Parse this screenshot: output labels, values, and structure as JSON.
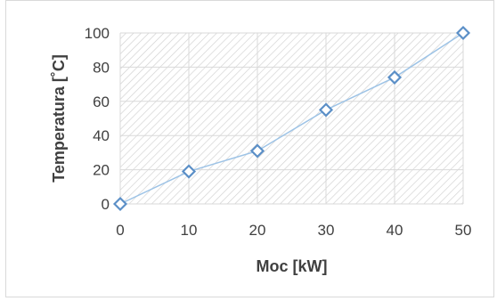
{
  "chart_data": {
    "type": "line",
    "title": "",
    "xlabel": "Moc [kW]",
    "ylabel": "Temperatura [˚C]",
    "x": [
      0,
      10,
      20,
      30,
      40,
      50
    ],
    "series": [
      {
        "values": [
          0,
          19,
          31,
          55,
          74,
          100
        ]
      }
    ],
    "xlim": [
      0,
      50
    ],
    "ylim": [
      0,
      100
    ],
    "xticks": [
      "0",
      "10",
      "20",
      "30",
      "40",
      "50"
    ],
    "yticks": [
      "0",
      "20",
      "40",
      "60",
      "80",
      "100"
    ],
    "grid": true,
    "plot_fill": "hatched",
    "legend": "none",
    "colors": {
      "line": "#9dc3e6",
      "marker_stroke": "#5b8fc7",
      "marker_fill": "#ffffff",
      "grid": "#d9d9d9",
      "hatch": "#d0d0d0",
      "text": "#404040"
    }
  }
}
